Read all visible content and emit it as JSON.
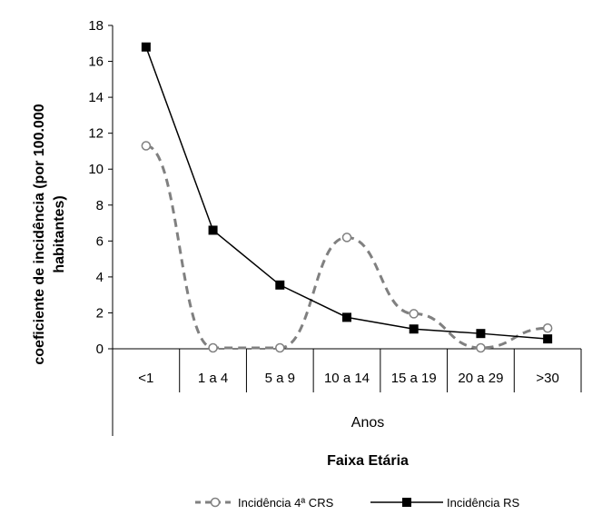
{
  "chart_data": {
    "type": "line",
    "ylabel": "coeficiente de incidência (por 100.000 habitantes)",
    "ylabel_lines": [
      "coeficiente de incidência (por 100.000",
      "habitantes)"
    ],
    "xlabel": "Anos",
    "xgroup_label": "Faixa Etária",
    "categories": [
      "<1",
      "1 a 4",
      "5 a 9",
      "10  a 14",
      "15 a 19",
      "20 a 29",
      ">30"
    ],
    "ylim": [
      0,
      18
    ],
    "yticks": [
      "0",
      "2",
      "4",
      "6",
      "8",
      "10",
      "12",
      "14",
      "16",
      "18"
    ],
    "grid": false,
    "legend_position": "bottom",
    "series": [
      {
        "name": "Incidência 4ª CRS",
        "values": [
          11.3,
          0.05,
          0.05,
          6.2,
          1.95,
          0.05,
          1.15
        ],
        "style": "dashed",
        "marker": "open-circle",
        "color": "#808080"
      },
      {
        "name": "Incidência RS",
        "values": [
          16.8,
          6.6,
          3.55,
          1.75,
          1.1,
          0.85,
          0.55
        ],
        "style": "solid",
        "marker": "filled-square",
        "color": "#000000"
      }
    ]
  }
}
